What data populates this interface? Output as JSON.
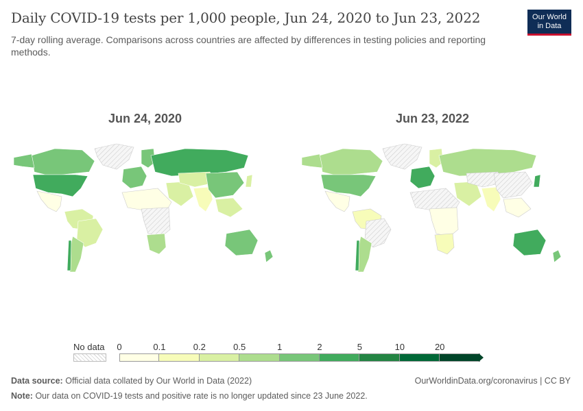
{
  "header": {
    "title": "Daily COVID-19 tests per 1,000 people, Jun 24, 2020 to Jun 23, 2022",
    "subtitle": "7-day rolling average. Comparisons across countries are affected by differences in testing policies and reporting methods."
  },
  "logo": {
    "line1": "Our World",
    "line2": "in Data",
    "bg": "#0f2d56",
    "accent": "#c8102e"
  },
  "maps": [
    {
      "label": "Jun 24, 2020"
    },
    {
      "label": "Jun 23, 2022"
    }
  ],
  "legend": {
    "nodata_label": "No data",
    "ticks": [
      "0",
      "0.1",
      "0.2",
      "0.5",
      "1",
      "2",
      "5",
      "10",
      "20"
    ],
    "bins": [
      {
        "range": "0–0.1",
        "color": "#ffffe5"
      },
      {
        "range": "0.1–0.2",
        "color": "#f7fcb9"
      },
      {
        "range": "0.2–0.5",
        "color": "#d9f0a3"
      },
      {
        "range": "0.5–1",
        "color": "#addd8e"
      },
      {
        "range": "1–2",
        "color": "#78c679"
      },
      {
        "range": "2–5",
        "color": "#41ab5d"
      },
      {
        "range": "5–10",
        "color": "#238443"
      },
      {
        "range": "10–20",
        "color": "#006837"
      },
      {
        "range": ">20",
        "color": "#004529"
      }
    ]
  },
  "footer": {
    "source_label": "Data source:",
    "source_text": "Official data collated by Our World in Data (2022)",
    "url": "OurWorldinData.org/coronavirus | CC BY",
    "note_label": "Note:",
    "note_text": "Our data on COVID-19 tests and positive rate is no longer updated since 23 June 2022."
  }
}
